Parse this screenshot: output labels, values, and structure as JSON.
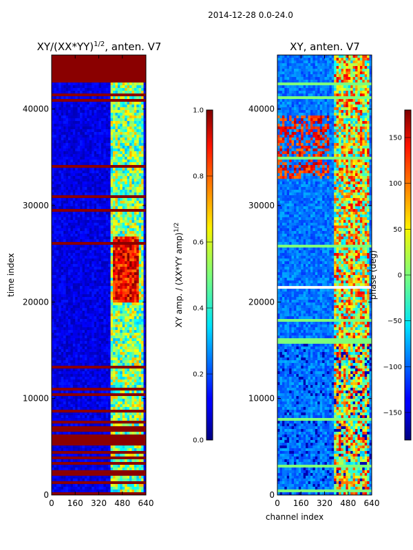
{
  "figure_title": "2014-12-28 0.0-24.0",
  "chart_data": [
    {
      "type": "heatmap",
      "title_main": "XY/(XX*YY)",
      "title_sup": "1/2",
      "title_tail": ", anten. V7",
      "xlabel": "",
      "ylabel": "time index",
      "xlim": [
        0,
        640
      ],
      "ylim": [
        0,
        45600
      ],
      "x_ticks": [
        0,
        160,
        320,
        480,
        640
      ],
      "y_ticks": [
        0,
        10000,
        20000,
        30000,
        40000
      ],
      "colorbar": {
        "label_main": "XY amp. / (XX*YY amp)",
        "label_sup": "1/2",
        "range": [
          0.0,
          1.0
        ],
        "ticks": [
          "0.0",
          "0.2",
          "0.4",
          "0.6",
          "0.8",
          "1.0"
        ],
        "tick_values": [
          0.0,
          0.2,
          0.4,
          0.6,
          0.8,
          1.0
        ],
        "colormap": "jet"
      }
    },
    {
      "type": "heatmap",
      "title": "XY, anten. V7",
      "xlabel": "channel index",
      "ylabel": "",
      "xlim": [
        0,
        640
      ],
      "ylim": [
        0,
        45600
      ],
      "x_ticks": [
        0,
        160,
        320,
        480,
        640
      ],
      "y_ticks": [
        0,
        10000,
        20000,
        30000,
        40000
      ],
      "colorbar": {
        "label": "phase (deg)",
        "range": [
          -180,
          180
        ],
        "ticks": [
          "150",
          "100",
          "50",
          "0",
          "−50",
          "−100",
          "−150"
        ],
        "tick_values": [
          150,
          100,
          50,
          0,
          -50,
          -100,
          -150
        ],
        "colormap": "jet"
      }
    }
  ]
}
